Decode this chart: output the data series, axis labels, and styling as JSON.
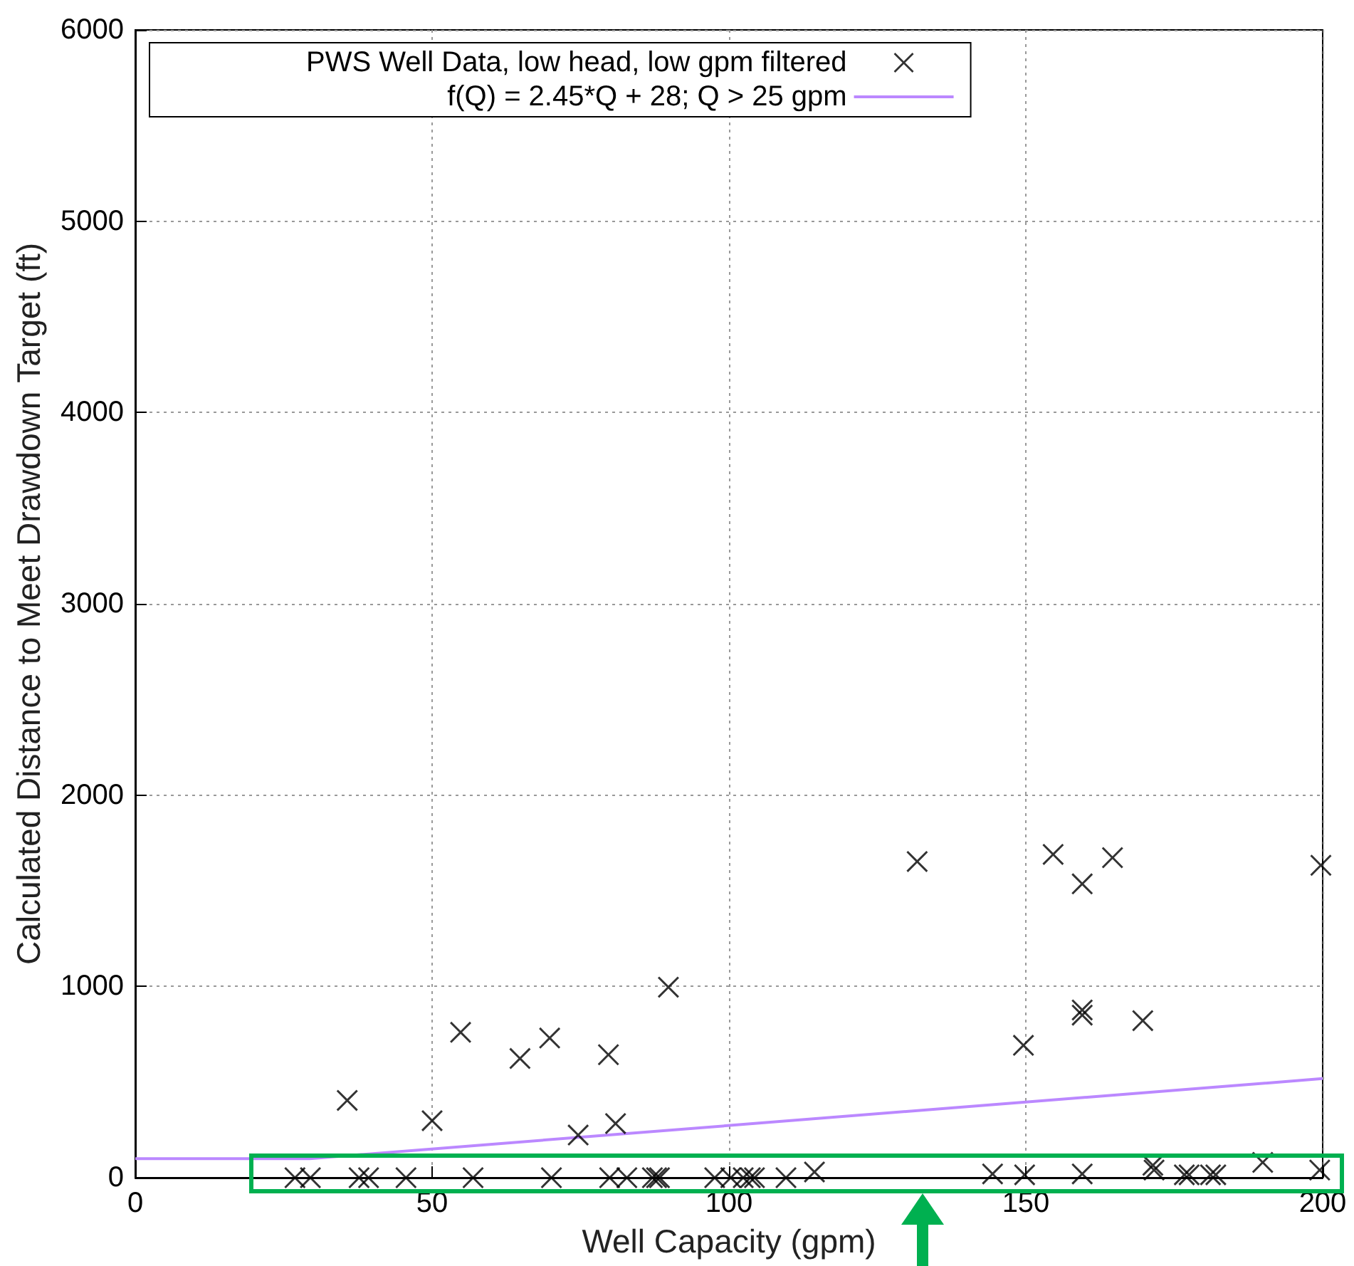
{
  "chart_data": {
    "type": "scatter",
    "xlabel": "Well Capacity (gpm)",
    "ylabel": "Calculated Distance to Meet Drawdown Target (ft)",
    "xlim": [
      0,
      200
    ],
    "xticks": [
      0,
      50,
      100,
      150,
      200
    ],
    "ylim": [
      0,
      6000
    ],
    "yticks": [
      0,
      1000,
      2000,
      3000,
      4000,
      5000,
      6000
    ],
    "grid": true,
    "legend": "top",
    "marker": "cross",
    "series": [
      {
        "name": "PWS Well Data, low head, low gpm filtered",
        "type": "scatter",
        "color": "#000000",
        "x": [
          26.9,
          29.5,
          37.7,
          39.3,
          45.6,
          56.9,
          70.1,
          79.9,
          82.8,
          87.1,
          87.8,
          88.3,
          97.6,
          100.3,
          102.4,
          103.6,
          104.3,
          109.6,
          114.4,
          144.4,
          149.8,
          159.5,
          171.4,
          171.6,
          176.7,
          177.5,
          181.1,
          182,
          189.9,
          199.5,
          35.7,
          50,
          54.8,
          64.8,
          69.8,
          74.6,
          79.7,
          80.9,
          89.8,
          131.7,
          154.6,
          159.5,
          164.6,
          199.7,
          149.6,
          159.5,
          159.5,
          169.7
        ],
        "values": [
          0,
          0,
          0,
          0,
          0,
          0,
          0,
          0,
          0,
          0,
          0,
          0,
          0,
          0,
          0,
          0,
          0,
          0,
          30,
          20,
          15,
          20,
          65,
          40,
          15,
          15,
          15,
          15,
          80,
          40,
          404,
          298,
          760,
          623,
          730,
          223,
          643,
          283,
          996,
          1653,
          1690,
          1536,
          1673,
          1633,
          692,
          877,
          850,
          821
        ]
      },
      {
        "name": "f(Q) = 2.45*Q + 28; Q > 25 gpm",
        "type": "line",
        "marker": "none",
        "color": "#bb88ff",
        "x": [
          0,
          29.4,
          200
        ],
        "values": [
          100,
          100,
          518
        ]
      }
    ]
  }
}
